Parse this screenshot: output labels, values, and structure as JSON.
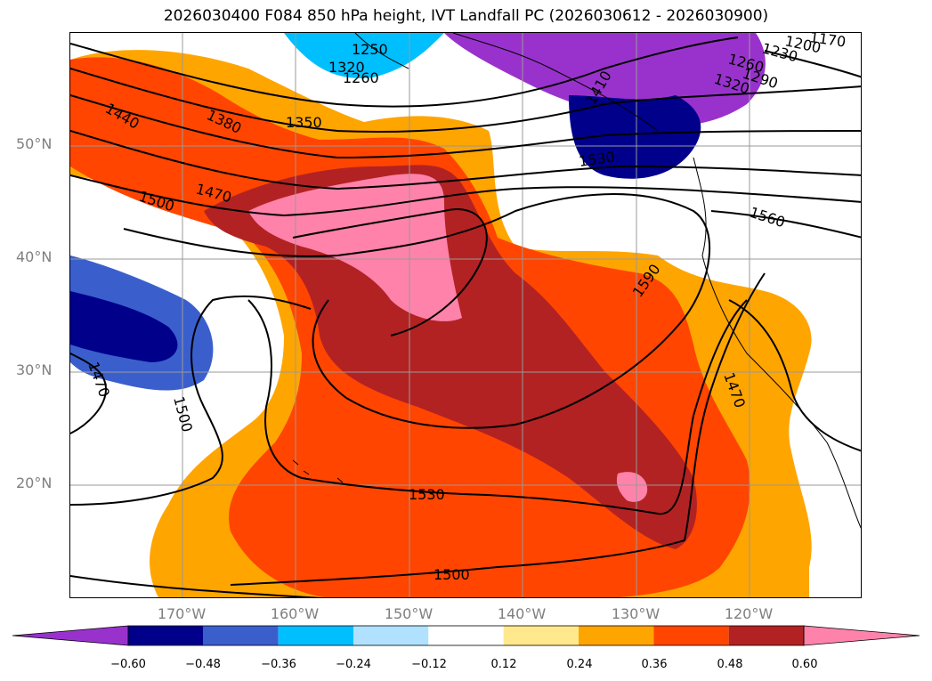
{
  "title": "2026030400 F084 850 hPa height, IVT Landfall PC (2026030612 - 2026030900)",
  "lat_labels": [
    "50°N",
    "40°N",
    "30°N",
    "20°N"
  ],
  "lon_labels": [
    "170°W",
    "160°W",
    "150°W",
    "140°W",
    "130°W",
    "120°W"
  ],
  "colorbar": {
    "ticks": [
      "−0.60",
      "−0.48",
      "−0.36",
      "−0.24",
      "−0.12",
      "0.12",
      "0.24",
      "0.36",
      "0.48",
      "0.60"
    ],
    "colors": [
      "#9932cc",
      "#00008b",
      "#3a5fcd",
      "#00bfff",
      "#b0e2ff",
      "#ffffff",
      "#ffe98c",
      "#ffa500",
      "#ff4500",
      "#b22222",
      "#ff82ab"
    ]
  },
  "contour_labels": [
    "1440",
    "1380",
    "1350",
    "1260",
    "1250",
    "1320",
    "1470",
    "1500",
    "1530",
    "1560",
    "1590",
    "1470",
    "1500",
    "1530",
    "1500",
    "1470",
    "1260",
    "1230",
    "1200",
    "1170",
    "1290",
    "1320",
    "1410"
  ],
  "colors": {
    "positive_high": "#ff82ab",
    "negative_low": "#00008b",
    "contour": "#000000"
  }
}
